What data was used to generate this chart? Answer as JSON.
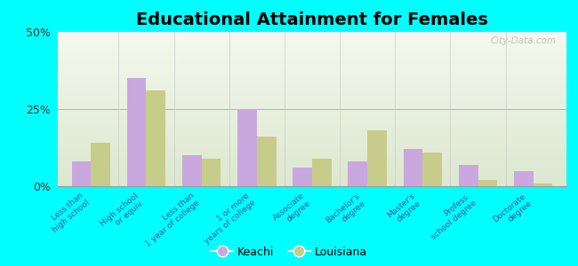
{
  "title": "Educational Attainment for Females",
  "categories": [
    "Less than\nhigh school",
    "High school\nor equiv.",
    "Less than\n1 year of college",
    "1 or more\nyears of college",
    "Associate\ndegree",
    "Bachelor's\ndegree",
    "Master's\ndegree",
    "Profess.\nschool degree",
    "Doctorate\ndegree"
  ],
  "keachi": [
    8,
    35,
    10,
    25,
    6,
    8,
    12,
    7,
    5
  ],
  "louisiana": [
    14,
    31,
    9,
    16,
    9,
    18,
    11,
    2,
    1
  ],
  "keachi_color": "#c9a8e0",
  "louisiana_color": "#c8cc8a",
  "bg_color": "#00ffff",
  "plot_bg_top": "#f5f8ee",
  "plot_bg_bottom": "#dce8d0",
  "ylim": [
    0,
    50
  ],
  "yticks": [
    0,
    25,
    50
  ],
  "yticklabels": [
    "0%",
    "25%",
    "50%"
  ],
  "bar_width": 0.35,
  "figsize": [
    6.5,
    3.0
  ],
  "dpi": 100,
  "title_fontsize": 14,
  "tick_fontsize": 6.5,
  "legend_fontsize": 9
}
